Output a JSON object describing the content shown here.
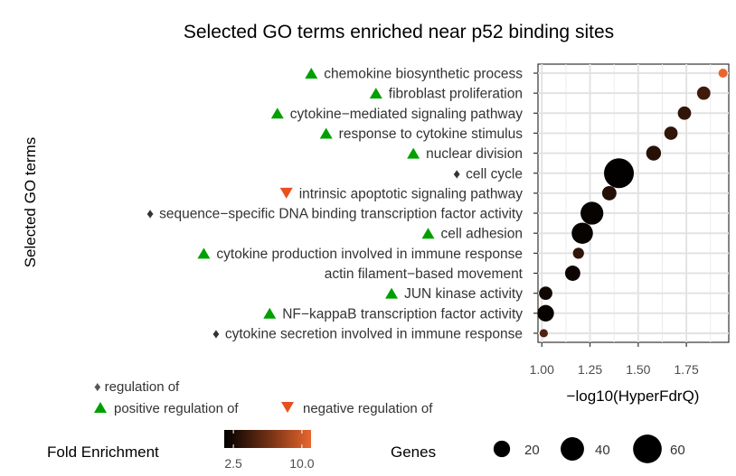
{
  "chart_data": {
    "type": "scatter",
    "title": "Selected GO terms enriched near p52 binding sites",
    "xlabel": "−log10(HyperFdrQ)",
    "ylabel": "Selected GO terms",
    "xlim": [
      0.98,
      1.97
    ],
    "xticks": [
      1.0,
      1.25,
      1.5,
      1.75
    ],
    "xtick_labels": [
      "1.00",
      "1.25",
      "1.50",
      "1.75"
    ],
    "grid": true,
    "points": [
      {
        "term": "chemokine biosynthetic process",
        "marker": "up",
        "x": 1.94,
        "genes": 6,
        "fold": 11.0
      },
      {
        "term": "fibroblast proliferation",
        "marker": "up",
        "x": 1.84,
        "genes": 13,
        "fold": 4.2
      },
      {
        "term": "cytokine−mediated signaling pathway",
        "marker": "up",
        "x": 1.74,
        "genes": 13,
        "fold": 3.6
      },
      {
        "term": "response to cytokine stimulus",
        "marker": "up",
        "x": 1.67,
        "genes": 13,
        "fold": 3.6
      },
      {
        "term": "nuclear division",
        "marker": "up",
        "x": 1.58,
        "genes": 16,
        "fold": 3.2
      },
      {
        "term": "cell cycle",
        "marker": "diamond",
        "x": 1.4,
        "genes": 65,
        "fold": 1.6
      },
      {
        "term": "intrinsic apoptotic signaling pathway",
        "marker": "down",
        "x": 1.35,
        "genes": 15,
        "fold": 3.0
      },
      {
        "term": "sequence−specific DNA binding transcription factor activity",
        "marker": "diamond",
        "x": 1.26,
        "genes": 38,
        "fold": 1.8
      },
      {
        "term": "cell adhesion",
        "marker": "up",
        "x": 1.21,
        "genes": 33,
        "fold": 1.8
      },
      {
        "term": "cytokine production involved in immune response",
        "marker": "up",
        "x": 1.19,
        "genes": 9,
        "fold": 3.6
      },
      {
        "term": "actin filament−based movement",
        "marker": "none",
        "x": 1.16,
        "genes": 17,
        "fold": 2.0
      },
      {
        "term": "JUN kinase activity",
        "marker": "up",
        "x": 1.02,
        "genes": 13,
        "fold": 2.2
      },
      {
        "term": "NF−kappaB transcription factor activity",
        "marker": "up",
        "x": 1.02,
        "genes": 20,
        "fold": 1.8
      },
      {
        "term": "cytokine secretion involved in immune response",
        "marker": "diamond",
        "x": 1.01,
        "genes": 5,
        "fold": 5.0
      }
    ],
    "color_legend": {
      "title": "Fold Enrichment",
      "min": 1.5,
      "max": 11.0,
      "low_color": "#000000",
      "high_color": "#e8662e",
      "ticks": [
        2.5,
        10.0
      ],
      "tick_labels": [
        "2.5",
        "10.0"
      ]
    },
    "size_legend": {
      "title": "Genes",
      "values": [
        20,
        40,
        60
      ],
      "labels": [
        "20",
        "40",
        "60"
      ]
    },
    "marker_legend": {
      "diamond_label": "regulation of",
      "up_label": "positive regulation of",
      "down_label": "negative regulation of",
      "diamond_glyph": "♦",
      "up_color": "#00a000",
      "down_color": "#e8501e",
      "diamond_color": "#555555"
    }
  }
}
